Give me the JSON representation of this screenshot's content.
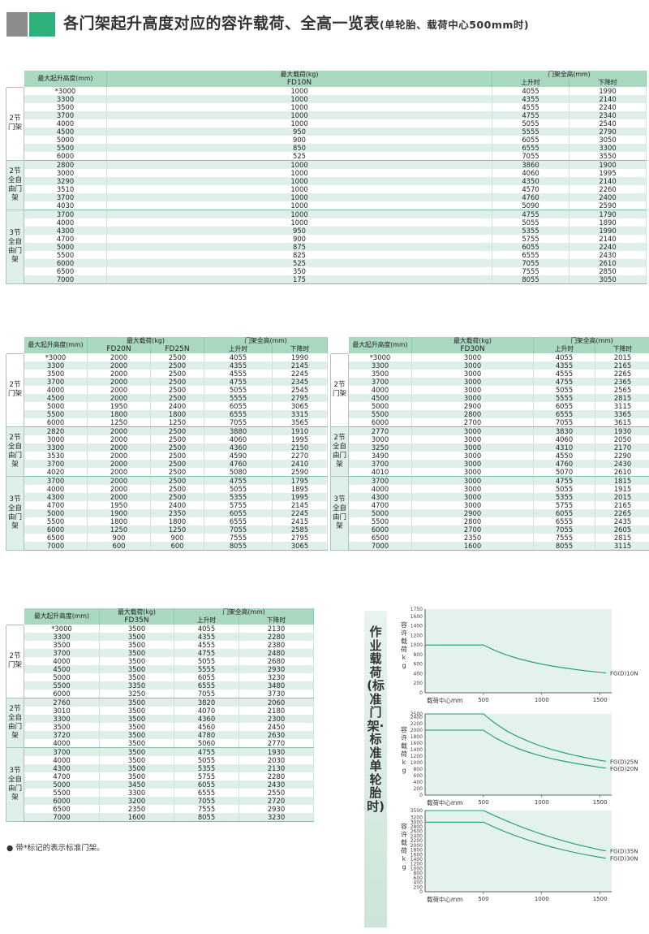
{
  "title": {
    "main": "各门架起升高度对应的容许载荷、全高一览表",
    "sub": "(单轮胎、载荷中心500mm时)"
  },
  "headers": {
    "lift_height": "最大起升高度(mm)",
    "max_load": "最大载荷(kg)",
    "mast_height": "门架全高(mm)",
    "raised": "上升时",
    "lowered": "下降时"
  },
  "table1": {
    "models": [
      "FD10N"
    ],
    "groups": [
      {
        "label": "2节门架",
        "rows": [
          [
            "*3000",
            "1000",
            "4055",
            "1990"
          ],
          [
            "3300",
            "1000",
            "4355",
            "2140"
          ],
          [
            "3500",
            "1000",
            "4555",
            "2240"
          ],
          [
            "3700",
            "1000",
            "4755",
            "2340"
          ],
          [
            "4000",
            "1000",
            "5055",
            "2540"
          ],
          [
            "4500",
            "950",
            "5555",
            "2790"
          ],
          [
            "5000",
            "900",
            "6055",
            "3050"
          ],
          [
            "5500",
            "850",
            "6555",
            "3300"
          ],
          [
            "6000",
            "525",
            "7055",
            "3550"
          ]
        ]
      },
      {
        "label": "2节全自由门架",
        "rows": [
          [
            "2800",
            "1000",
            "3860",
            "1900"
          ],
          [
            "3000",
            "1000",
            "4060",
            "1995"
          ],
          [
            "3290",
            "1000",
            "4350",
            "2140"
          ],
          [
            "3510",
            "1000",
            "4570",
            "2260"
          ],
          [
            "3700",
            "1000",
            "4760",
            "2400"
          ],
          [
            "4030",
            "1000",
            "5090",
            "2590"
          ]
        ]
      },
      {
        "label": "3节全自由门架",
        "rows": [
          [
            "3700",
            "1000",
            "4755",
            "1790"
          ],
          [
            "4000",
            "1000",
            "5055",
            "1890"
          ],
          [
            "4300",
            "950",
            "5355",
            "1990"
          ],
          [
            "4700",
            "900",
            "5755",
            "2140"
          ],
          [
            "5000",
            "875",
            "6055",
            "2240"
          ],
          [
            "5500",
            "825",
            "6555",
            "2430"
          ],
          [
            "6000",
            "525",
            "7055",
            "2610"
          ],
          [
            "6500",
            "350",
            "7555",
            "2850"
          ],
          [
            "7000",
            "175",
            "8055",
            "3050"
          ]
        ]
      }
    ]
  },
  "table2": {
    "models": [
      "FD20N",
      "FD25N"
    ],
    "groups": [
      {
        "label": "2节门架",
        "rows": [
          [
            "*3000",
            "2000",
            "2500",
            "4055",
            "1990"
          ],
          [
            "3300",
            "2000",
            "2500",
            "4355",
            "2145"
          ],
          [
            "3500",
            "2000",
            "2500",
            "4555",
            "2245"
          ],
          [
            "3700",
            "2000",
            "2500",
            "4755",
            "2345"
          ],
          [
            "4000",
            "2000",
            "2500",
            "5055",
            "2545"
          ],
          [
            "4500",
            "2000",
            "2500",
            "5555",
            "2795"
          ],
          [
            "5000",
            "1950",
            "2400",
            "6055",
            "3065"
          ],
          [
            "5500",
            "1800",
            "1800",
            "6555",
            "3315"
          ],
          [
            "6000",
            "1250",
            "1250",
            "7055",
            "3565"
          ]
        ]
      },
      {
        "label": "2节全自由门架",
        "rows": [
          [
            "2820",
            "2000",
            "2500",
            "3880",
            "1910"
          ],
          [
            "3000",
            "2000",
            "2500",
            "4060",
            "1995"
          ],
          [
            "3300",
            "2000",
            "2500",
            "4360",
            "2150"
          ],
          [
            "3530",
            "2000",
            "2500",
            "4590",
            "2270"
          ],
          [
            "3700",
            "2000",
            "2500",
            "4760",
            "2410"
          ],
          [
            "4020",
            "2000",
            "2500",
            "5080",
            "2590"
          ]
        ]
      },
      {
        "label": "3节全自由门架",
        "rows": [
          [
            "3700",
            "2000",
            "2500",
            "4755",
            "1795"
          ],
          [
            "4000",
            "2000",
            "2500",
            "5055",
            "1895"
          ],
          [
            "4300",
            "2000",
            "2500",
            "5355",
            "1995"
          ],
          [
            "4700",
            "1950",
            "2400",
            "5755",
            "2145"
          ],
          [
            "5000",
            "1900",
            "2350",
            "6055",
            "2245"
          ],
          [
            "5500",
            "1800",
            "1800",
            "6555",
            "2415"
          ],
          [
            "6000",
            "1250",
            "1250",
            "7055",
            "2585"
          ],
          [
            "6500",
            "900",
            "900",
            "7555",
            "2795"
          ],
          [
            "7000",
            "600",
            "600",
            "8055",
            "3065"
          ]
        ]
      }
    ]
  },
  "table3": {
    "models": [
      "FD30N"
    ],
    "groups": [
      {
        "label": "2节门架",
        "rows": [
          [
            "*3000",
            "3000",
            "4055",
            "2015"
          ],
          [
            "3300",
            "3000",
            "4355",
            "2165"
          ],
          [
            "3500",
            "3000",
            "4555",
            "2265"
          ],
          [
            "3700",
            "3000",
            "4755",
            "2365"
          ],
          [
            "4000",
            "3000",
            "5055",
            "2565"
          ],
          [
            "4500",
            "3000",
            "5555",
            "2815"
          ],
          [
            "5000",
            "2900",
            "6055",
            "3115"
          ],
          [
            "5500",
            "2800",
            "6555",
            "3365"
          ],
          [
            "6000",
            "2700",
            "7055",
            "3615"
          ]
        ]
      },
      {
        "label": "2节全自由门架",
        "rows": [
          [
            "2770",
            "3000",
            "3830",
            "1930"
          ],
          [
            "3000",
            "3000",
            "4060",
            "2050"
          ],
          [
            "3250",
            "3000",
            "4310",
            "2170"
          ],
          [
            "3490",
            "3000",
            "4550",
            "2290"
          ],
          [
            "3700",
            "3000",
            "4760",
            "2430"
          ],
          [
            "4010",
            "3000",
            "5070",
            "2610"
          ]
        ]
      },
      {
        "label": "3节全自由门架",
        "rows": [
          [
            "3700",
            "3000",
            "4755",
            "1815"
          ],
          [
            "4000",
            "3000",
            "5055",
            "1915"
          ],
          [
            "4300",
            "3000",
            "5355",
            "2015"
          ],
          [
            "4700",
            "3000",
            "5755",
            "2165"
          ],
          [
            "5000",
            "2900",
            "6055",
            "2265"
          ],
          [
            "5500",
            "2800",
            "6555",
            "2435"
          ],
          [
            "6000",
            "2700",
            "7055",
            "2605"
          ],
          [
            "6500",
            "2350",
            "7555",
            "2815"
          ],
          [
            "7000",
            "1600",
            "8055",
            "3115"
          ]
        ]
      }
    ]
  },
  "table4": {
    "models": [
      "FD35N"
    ],
    "groups": [
      {
        "label": "2节门架",
        "rows": [
          [
            "*3000",
            "3500",
            "4055",
            "2130"
          ],
          [
            "3300",
            "3500",
            "4355",
            "2280"
          ],
          [
            "3500",
            "3500",
            "4555",
            "2380"
          ],
          [
            "3700",
            "3500",
            "4755",
            "2480"
          ],
          [
            "4000",
            "3500",
            "5055",
            "2680"
          ],
          [
            "4500",
            "3500",
            "5555",
            "2930"
          ],
          [
            "5000",
            "3500",
            "6055",
            "3230"
          ],
          [
            "5500",
            "3350",
            "6555",
            "3480"
          ],
          [
            "6000",
            "3250",
            "7055",
            "3730"
          ]
        ]
      },
      {
        "label": "2节全自由门架",
        "rows": [
          [
            "2760",
            "3500",
            "3820",
            "2060"
          ],
          [
            "3010",
            "3500",
            "4070",
            "2180"
          ],
          [
            "3300",
            "3500",
            "4360",
            "2300"
          ],
          [
            "3500",
            "3500",
            "4560",
            "2450"
          ],
          [
            "3720",
            "3500",
            "4780",
            "2630"
          ],
          [
            "4000",
            "3500",
            "5060",
            "2770"
          ]
        ]
      },
      {
        "label": "3节全自由门架",
        "rows": [
          [
            "3700",
            "3500",
            "4755",
            "1930"
          ],
          [
            "4000",
            "3500",
            "5055",
            "2030"
          ],
          [
            "4300",
            "3500",
            "5355",
            "2130"
          ],
          [
            "4700",
            "3500",
            "5755",
            "2280"
          ],
          [
            "5000",
            "3450",
            "6055",
            "2430"
          ],
          [
            "5500",
            "3300",
            "6555",
            "2550"
          ],
          [
            "6000",
            "3200",
            "7055",
            "2720"
          ],
          [
            "6500",
            "2350",
            "7555",
            "2930"
          ],
          [
            "7000",
            "1600",
            "8055",
            "3230"
          ]
        ]
      }
    ]
  },
  "note": "带*标记的表示标准门架。",
  "side_title": "作业载荷(标准门架·标准单轮胎时)",
  "chart_data": [
    {
      "type": "line",
      "ylabel": "容许载荷kg",
      "xlabel": "载荷中心mm",
      "xticks": [
        500,
        1000,
        1500
      ],
      "xlim": [
        0,
        1600
      ],
      "yticks": [
        0,
        200,
        400,
        600,
        800,
        1000,
        1200,
        1400,
        1600,
        1750
      ],
      "ylim": [
        0,
        1750
      ],
      "series": [
        {
          "name": "FG(D)10N",
          "x": [
            0,
            500,
            600,
            700,
            800,
            900,
            1000,
            1100,
            1200,
            1300,
            1400,
            1500,
            1550
          ],
          "values": [
            1000,
            1000,
            883,
            790,
            715,
            653,
            600,
            555,
            517,
            483,
            453,
            427,
            415
          ]
        }
      ]
    },
    {
      "type": "line",
      "ylabel": "容许载荷kg",
      "xlabel": "载荷中心mm",
      "xticks": [
        500,
        1000,
        1500
      ],
      "xlim": [
        0,
        1600
      ],
      "yticks": [
        0,
        200,
        400,
        600,
        800,
        1000,
        1200,
        1400,
        1600,
        1800,
        2000,
        2200,
        2400,
        2500
      ],
      "ylim": [
        0,
        2500
      ],
      "series": [
        {
          "name": "FG(D)25N",
          "x": [
            0,
            500,
            600,
            700,
            800,
            900,
            1000,
            1100,
            1200,
            1300,
            1400,
            1500,
            1550
          ],
          "values": [
            2500,
            2500,
            2210,
            1975,
            1790,
            1635,
            1500,
            1390,
            1295,
            1210,
            1135,
            1070,
            1040
          ]
        },
        {
          "name": "FG(D)20N",
          "x": [
            0,
            500,
            600,
            700,
            800,
            900,
            1000,
            1100,
            1200,
            1300,
            1400,
            1500,
            1550
          ],
          "values": [
            2000,
            2000,
            1765,
            1580,
            1430,
            1305,
            1200,
            1110,
            1035,
            970,
            910,
            855,
            830
          ]
        }
      ]
    },
    {
      "type": "line",
      "ylabel": "容许载荷kg",
      "xlabel": "载荷中心mm",
      "xticks": [
        500,
        1000,
        1500
      ],
      "xlim": [
        0,
        1600
      ],
      "yticks": [
        0,
        200,
        400,
        600,
        800,
        1000,
        1200,
        1400,
        1600,
        1800,
        2000,
        2200,
        2400,
        2600,
        2800,
        3000,
        3200,
        3500
      ],
      "ylim": [
        0,
        3500
      ],
      "series": [
        {
          "name": "FG(D)35N",
          "x": [
            0,
            500,
            600,
            700,
            800,
            900,
            1000,
            1100,
            1200,
            1300,
            1400,
            1500,
            1550
          ],
          "values": [
            3500,
            3500,
            3270,
            3050,
            2845,
            2655,
            2480,
            2320,
            2175,
            2040,
            1920,
            1810,
            1760
          ]
        },
        {
          "name": "FG(D)30N",
          "x": [
            0,
            500,
            600,
            700,
            800,
            900,
            1000,
            1100,
            1200,
            1300,
            1400,
            1500,
            1550
          ],
          "values": [
            3000,
            3000,
            2770,
            2560,
            2370,
            2200,
            2050,
            1910,
            1785,
            1675,
            1575,
            1485,
            1445
          ]
        }
      ]
    }
  ]
}
